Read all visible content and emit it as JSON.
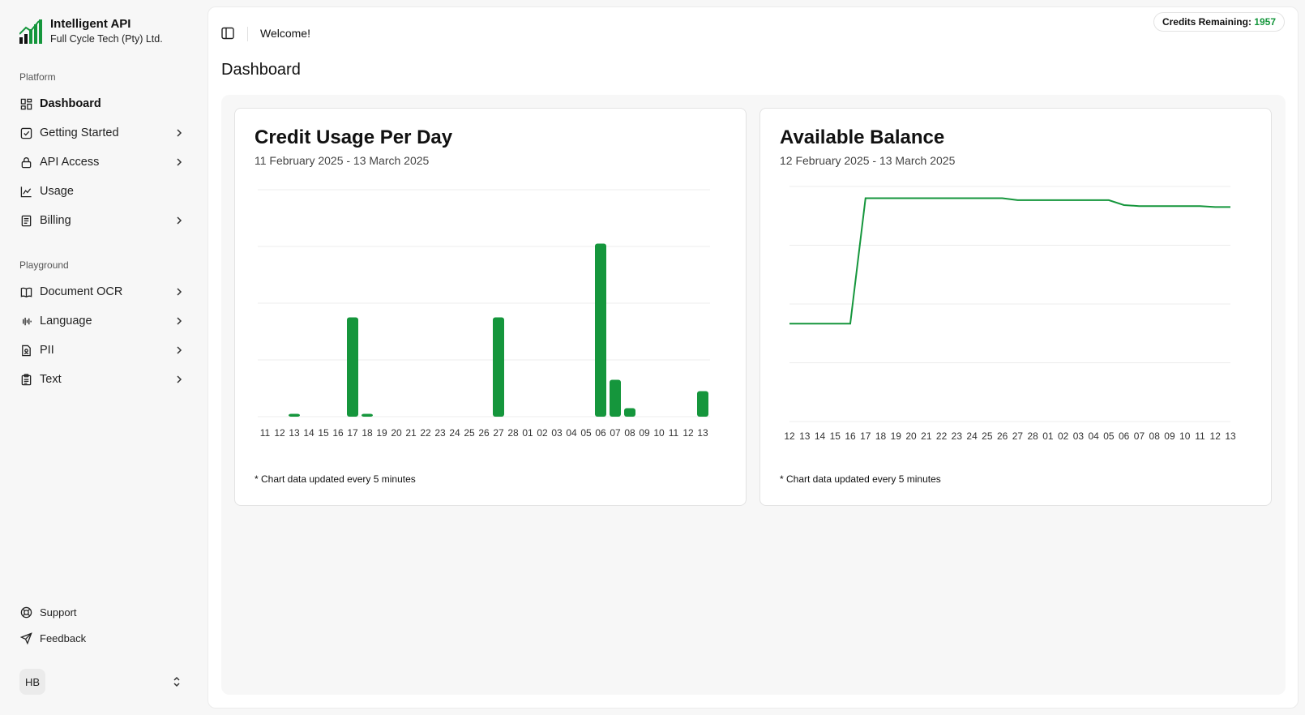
{
  "brand": {
    "name": "Intelligent API",
    "org": "Full Cycle Tech (Pty) Ltd."
  },
  "sidebar": {
    "platform_label": "Platform",
    "platform_items": [
      {
        "label": "Dashboard",
        "icon": "dashboard-icon",
        "active": true,
        "chevron": false
      },
      {
        "label": "Getting Started",
        "icon": "checklist-icon",
        "chevron": true
      },
      {
        "label": "API Access",
        "icon": "lock-icon",
        "chevron": true
      },
      {
        "label": "Usage",
        "icon": "chart-icon",
        "chevron": false
      },
      {
        "label": "Billing",
        "icon": "receipt-icon",
        "chevron": true
      }
    ],
    "playground_label": "Playground",
    "playground_items": [
      {
        "label": "Document OCR",
        "icon": "book-icon",
        "chevron": true
      },
      {
        "label": "Language",
        "icon": "audio-waveform-icon",
        "chevron": true
      },
      {
        "label": "PII",
        "icon": "file-user-icon",
        "chevron": true
      },
      {
        "label": "Text",
        "icon": "clipboard-text-icon",
        "chevron": true
      }
    ],
    "footer_items": [
      {
        "label": "Support",
        "icon": "lifebuoy-icon"
      },
      {
        "label": "Feedback",
        "icon": "send-icon"
      }
    ],
    "user_initials": "HB"
  },
  "header": {
    "welcome": "Welcome!",
    "credits_label": "Credits Remaining:",
    "credits_value": "1957"
  },
  "page": {
    "title": "Dashboard"
  },
  "colors": {
    "accent": "#15963c",
    "grid": "#ececec"
  },
  "cards": {
    "usage": {
      "title": "Credit Usage Per Day",
      "subtitle": "11 February 2025 - 13 March 2025",
      "note": "* Chart data updated every 5 minutes"
    },
    "balance": {
      "title": "Available Balance",
      "subtitle": "12 February 2025 - 13 March 2025",
      "note": "* Chart data updated every 5 minutes"
    }
  },
  "chart_data": [
    {
      "type": "bar",
      "title": "Credit Usage Per Day",
      "categories": [
        "11",
        "12",
        "13",
        "14",
        "15",
        "16",
        "17",
        "18",
        "19",
        "20",
        "21",
        "22",
        "23",
        "24",
        "25",
        "26",
        "27",
        "28",
        "01",
        "02",
        "03",
        "04",
        "05",
        "06",
        "07",
        "08",
        "09",
        "10",
        "11",
        "12",
        "13"
      ],
      "values": [
        0,
        0,
        2,
        0,
        0,
        0,
        70,
        2,
        0,
        0,
        0,
        0,
        0,
        0,
        0,
        0,
        70,
        0,
        0,
        0,
        0,
        0,
        0,
        122,
        26,
        6,
        0,
        0,
        0,
        0,
        18
      ],
      "ylim": [
        0,
        160
      ],
      "grid": true
    },
    {
      "type": "line",
      "title": "Available Balance",
      "categories": [
        "12",
        "13",
        "14",
        "15",
        "16",
        "17",
        "18",
        "19",
        "20",
        "21",
        "22",
        "23",
        "24",
        "25",
        "26",
        "27",
        "28",
        "01",
        "02",
        "03",
        "04",
        "05",
        "06",
        "07",
        "08",
        "09",
        "10",
        "11",
        "12",
        "13"
      ],
      "values": [
        1000,
        1000,
        1000,
        1000,
        1000,
        2280,
        2280,
        2280,
        2280,
        2280,
        2280,
        2280,
        2280,
        2280,
        2280,
        2260,
        2260,
        2260,
        2260,
        2260,
        2260,
        2260,
        2210,
        2200,
        2200,
        2200,
        2200,
        2200,
        2190,
        2190
      ],
      "ylim": [
        0,
        2400
      ],
      "grid": true
    }
  ]
}
